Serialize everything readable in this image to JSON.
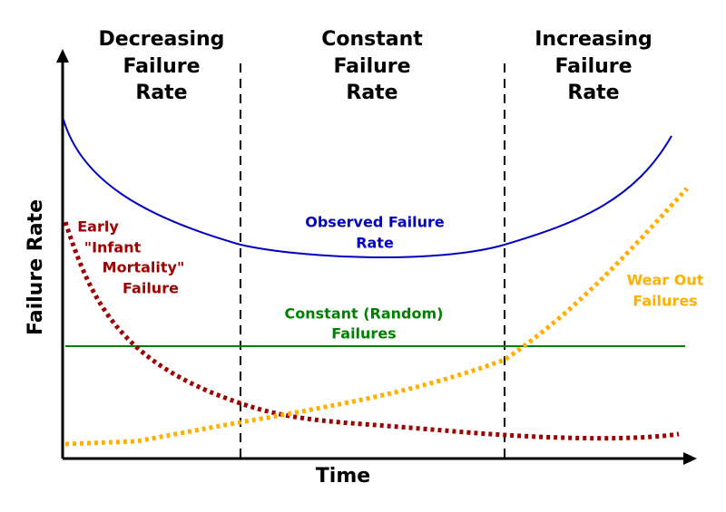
{
  "regions": [
    {
      "lines": [
        "Decreasing",
        "Failure",
        "Rate"
      ]
    },
    {
      "lines": [
        "Constant",
        "Failure",
        "Rate"
      ]
    },
    {
      "lines": [
        "Increasing",
        "Failure",
        "Rate"
      ]
    }
  ],
  "curves": {
    "observed": {
      "lines": [
        "Observed Failure",
        "Rate"
      ]
    },
    "early": {
      "lines": [
        "Early",
        "\"Infant",
        "Mortality\"",
        "Failure"
      ]
    },
    "constant": {
      "lines": [
        "Constant (Random)",
        "Failures"
      ]
    },
    "wear_out": {
      "lines": [
        "Wear Out",
        "Failures"
      ]
    }
  },
  "axes": {
    "x_label": "Time",
    "y_label": "Failure Rate"
  }
}
